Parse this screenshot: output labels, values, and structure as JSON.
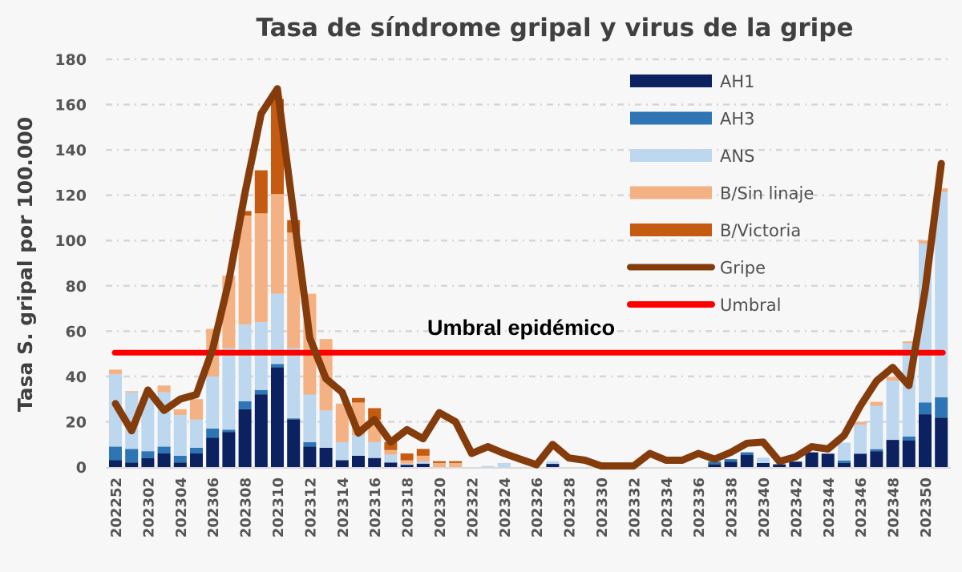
{
  "chart_data": {
    "type": "bar",
    "title": "Tasa de síndrome gripal y virus de la gripe",
    "xlabel": "",
    "ylabel": "Tasa S. gripal por 100.000",
    "ylim": [
      0,
      180
    ],
    "yticks": [
      0,
      20,
      40,
      60,
      80,
      100,
      120,
      140,
      160,
      180
    ],
    "grid": true,
    "legend_position": "top-right",
    "categories": [
      "202252",
      "202301",
      "202302",
      "202303",
      "202304",
      "202305",
      "202306",
      "202307",
      "202308",
      "202309",
      "202310",
      "202311",
      "202312",
      "202313",
      "202314",
      "202315",
      "202316",
      "202317",
      "202318",
      "202319",
      "202320",
      "202321",
      "202322",
      "202323",
      "202324",
      "202325",
      "202326",
      "202327",
      "202328",
      "202329",
      "202330",
      "202331",
      "202332",
      "202333",
      "202334",
      "202335",
      "202336",
      "202337",
      "202338",
      "202339",
      "202340",
      "202341",
      "202342",
      "202343",
      "202344",
      "202345",
      "202346",
      "202347",
      "202348",
      "202349",
      "202350",
      "202351"
    ],
    "xtick_labels": [
      "202252",
      "202302",
      "202304",
      "202306",
      "202308",
      "202310",
      "202312",
      "202314",
      "202316",
      "202318",
      "202320",
      "202322",
      "202324",
      "202326",
      "202328",
      "202330",
      "202332",
      "202334",
      "202336",
      "202338",
      "202340",
      "202342",
      "202344",
      "202346",
      "202348",
      "202350"
    ],
    "stacked_series": [
      {
        "name": "AH1",
        "color": "#0b2160",
        "values": [
          3,
          2,
          4,
          6,
          2,
          6,
          13,
          15.5,
          25.5,
          32,
          44,
          21,
          9,
          8.5,
          3,
          5,
          4,
          2,
          1,
          1.5,
          0,
          0,
          0,
          0,
          0,
          0,
          0,
          1.4,
          0,
          0,
          0,
          0,
          0,
          0,
          0,
          0,
          0,
          1.2,
          2.4,
          5.3,
          1.8,
          1.2,
          2.4,
          6.5,
          5.9,
          1.8,
          5.9,
          7,
          12,
          11.8,
          23.3,
          21.8
        ]
      },
      {
        "name": "AH3",
        "color": "#2e75b6",
        "values": [
          6,
          6,
          3,
          3,
          3,
          2.5,
          4,
          1,
          3.5,
          2,
          1.5,
          0.5,
          2,
          0,
          0,
          0,
          0,
          0,
          0,
          0,
          0,
          0,
          0,
          0,
          0,
          0,
          0,
          0,
          0,
          0,
          0,
          0,
          0,
          0,
          0,
          0,
          0,
          1.2,
          1.1,
          1.2,
          0,
          0,
          0,
          0,
          0,
          1.1,
          0,
          0.9,
          0,
          1.7,
          5.2,
          9
        ]
      },
      {
        "name": "ANS",
        "color": "#bdd7ee",
        "values": [
          32,
          25,
          24,
          24,
          18,
          12.5,
          23,
          36,
          34,
          30,
          31,
          31,
          21,
          16.5,
          8,
          9,
          7,
          3.5,
          0.5,
          1,
          0,
          0,
          0,
          0.5,
          1.8,
          0,
          0,
          1.2,
          0,
          0,
          0,
          0,
          0,
          0,
          0,
          0,
          0,
          0,
          0,
          0,
          2.3,
          0,
          0,
          0,
          0,
          7.9,
          12.9,
          19.1,
          26.2,
          41.2,
          70.1,
          90.6
        ]
      },
      {
        "name": "B/Sin linaje",
        "color": "#f4b183",
        "values": [
          2,
          0.5,
          0,
          3,
          2.5,
          9,
          21,
          32,
          48,
          48,
          44,
          51,
          44.5,
          31.5,
          17,
          14.5,
          10,
          2,
          1.5,
          2.5,
          1.8,
          1.8,
          0,
          0,
          0,
          0,
          0,
          0,
          0,
          0,
          0,
          0,
          0,
          0,
          0,
          0,
          0,
          0,
          0,
          0,
          0,
          0,
          0,
          0,
          0,
          0,
          1.2,
          1.8,
          1.6,
          0.8,
          1.4,
          1.6
        ]
      },
      {
        "name": "B/Victoria",
        "color": "#c55a11",
        "values": [
          0,
          0,
          0,
          0,
          0,
          0,
          0,
          0,
          2,
          19,
          42,
          5.5,
          0,
          0,
          0,
          2,
          5,
          3.5,
          3,
          3,
          0.8,
          0.8,
          0,
          0,
          0,
          0,
          0,
          0,
          0,
          0,
          0,
          0,
          0,
          0,
          0,
          0,
          0,
          0,
          0,
          0,
          0,
          0,
          0,
          0,
          0,
          0,
          0,
          0,
          0,
          0,
          0,
          0
        ]
      }
    ],
    "line_series": [
      {
        "name": "Gripe",
        "color": "#843c0c",
        "values": [
          28,
          16,
          34,
          25,
          30,
          32,
          52,
          82,
          121,
          156,
          167,
          112,
          57,
          39,
          33,
          15,
          21,
          11,
          16.5,
          12.5,
          24,
          20,
          6,
          9,
          6,
          3.5,
          1,
          10,
          4,
          3,
          0.5,
          0.5,
          0.5,
          6,
          3,
          3,
          6,
          3.5,
          6.5,
          10.5,
          11,
          2.5,
          4.5,
          9,
          8,
          14,
          27,
          38,
          44,
          36,
          78,
          134
        ]
      },
      {
        "name": "Umbral",
        "color": "#ff0000",
        "value": 50.5
      }
    ],
    "annotations": [
      {
        "text": "Umbral epidémico"
      }
    ]
  }
}
